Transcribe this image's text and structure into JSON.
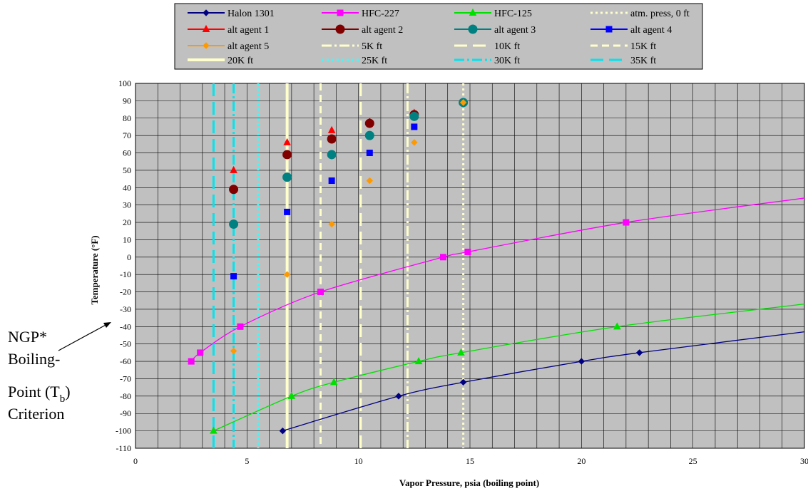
{
  "chart_data": {
    "type": "scatter",
    "xlabel": "Vapor Pressure, psia (boiling point)",
    "ylabel": "Temperature (°F)",
    "xlim": [
      0,
      30
    ],
    "ylim": [
      -110,
      100
    ],
    "x_ticks": [
      0,
      5,
      10,
      15,
      20,
      25,
      30
    ],
    "y_ticks": [
      100,
      90,
      80,
      70,
      60,
      50,
      40,
      30,
      20,
      10,
      0,
      -10,
      -20,
      -30,
      -40,
      -50,
      -60,
      -70,
      -80,
      -90,
      -100,
      -110
    ],
    "grid": true,
    "legend_position": "top",
    "plot_background": "#c0c0c0",
    "series": [
      {
        "name": "Halon 1301",
        "kind": "line-marker",
        "marker": "diamond",
        "color": "#000080",
        "x": [
          6.6,
          11.8,
          14.7,
          20.0,
          22.6,
          30.0
        ],
        "y": [
          -100,
          -80,
          -72,
          -60,
          -55,
          -43
        ]
      },
      {
        "name": "HFC-227",
        "kind": "line-marker",
        "marker": "square",
        "color": "#ff00ff",
        "x": [
          2.5,
          2.9,
          4.7,
          8.3,
          13.8,
          14.9,
          22.0,
          30.0
        ],
        "y": [
          -60,
          -55,
          -40,
          -20,
          0,
          3,
          20,
          34
        ]
      },
      {
        "name": "HFC-125",
        "kind": "line-marker",
        "marker": "triangle",
        "color": "#00e000",
        "x": [
          3.5,
          7.0,
          8.9,
          12.7,
          14.6,
          21.6,
          30.0
        ],
        "y": [
          -100,
          -80,
          -72,
          -60,
          -55,
          -40,
          -27
        ]
      },
      {
        "name": "atm. press, 0 ft",
        "kind": "vline",
        "x": 14.7,
        "color": "#ffffcc",
        "style": "dot"
      },
      {
        "name": "alt agent 1",
        "kind": "marker",
        "marker": "triangle",
        "color": "#ff0000",
        "x": [
          4.4,
          6.8,
          8.8,
          10.5,
          12.5
        ],
        "y": [
          50,
          66,
          73,
          78,
          83
        ]
      },
      {
        "name": "alt agent 2",
        "kind": "marker",
        "marker": "circle",
        "color": "#800000",
        "x": [
          4.4,
          6.8,
          8.8,
          10.5,
          12.5
        ],
        "y": [
          39,
          59,
          68,
          77,
          82
        ]
      },
      {
        "name": "alt agent 3",
        "kind": "marker",
        "marker": "circle",
        "color": "#008080",
        "x": [
          4.4,
          6.8,
          8.8,
          10.5,
          12.5,
          14.7
        ],
        "y": [
          19,
          46,
          59,
          70,
          81,
          89
        ]
      },
      {
        "name": "alt agent 4",
        "kind": "marker",
        "marker": "square",
        "color": "#0000ff",
        "x": [
          4.4,
          6.8,
          8.8,
          10.5,
          12.5
        ],
        "y": [
          -11,
          26,
          44,
          60,
          75
        ]
      },
      {
        "name": "alt agent 5",
        "kind": "marker",
        "marker": "diamond",
        "color": "#ff9900",
        "x": [
          4.4,
          6.8,
          8.8,
          10.5,
          12.5,
          14.7
        ],
        "y": [
          -54,
          -10,
          19,
          44,
          66,
          89
        ]
      },
      {
        "name": "5K ft",
        "kind": "vline",
        "x": 12.2,
        "color": "#ffffcc",
        "style": "dashdot"
      },
      {
        "name": "10K ft",
        "kind": "vline",
        "x": 10.1,
        "color": "#ffffcc",
        "style": "longdash"
      },
      {
        "name": "15K ft",
        "kind": "vline",
        "x": 8.3,
        "color": "#ffffcc",
        "style": "dash"
      },
      {
        "name": "20K ft",
        "kind": "vline",
        "x": 6.8,
        "color": "#ffffcc",
        "style": "solid"
      },
      {
        "name": "25K ft",
        "kind": "vline",
        "x": 5.5,
        "color": "#33ffff",
        "style": "dot"
      },
      {
        "name": "30K ft",
        "kind": "vline",
        "x": 4.4,
        "color": "#00e5ee",
        "style": "dashdot"
      },
      {
        "name": "35K ft",
        "kind": "vline",
        "x": 3.5,
        "color": "#00e5ee",
        "style": "longdash"
      }
    ],
    "annotation": {
      "lines": [
        "NGP*",
        "Boiling-",
        "Point (T",
        ")",
        "Criterion"
      ],
      "subscript": "b"
    }
  }
}
